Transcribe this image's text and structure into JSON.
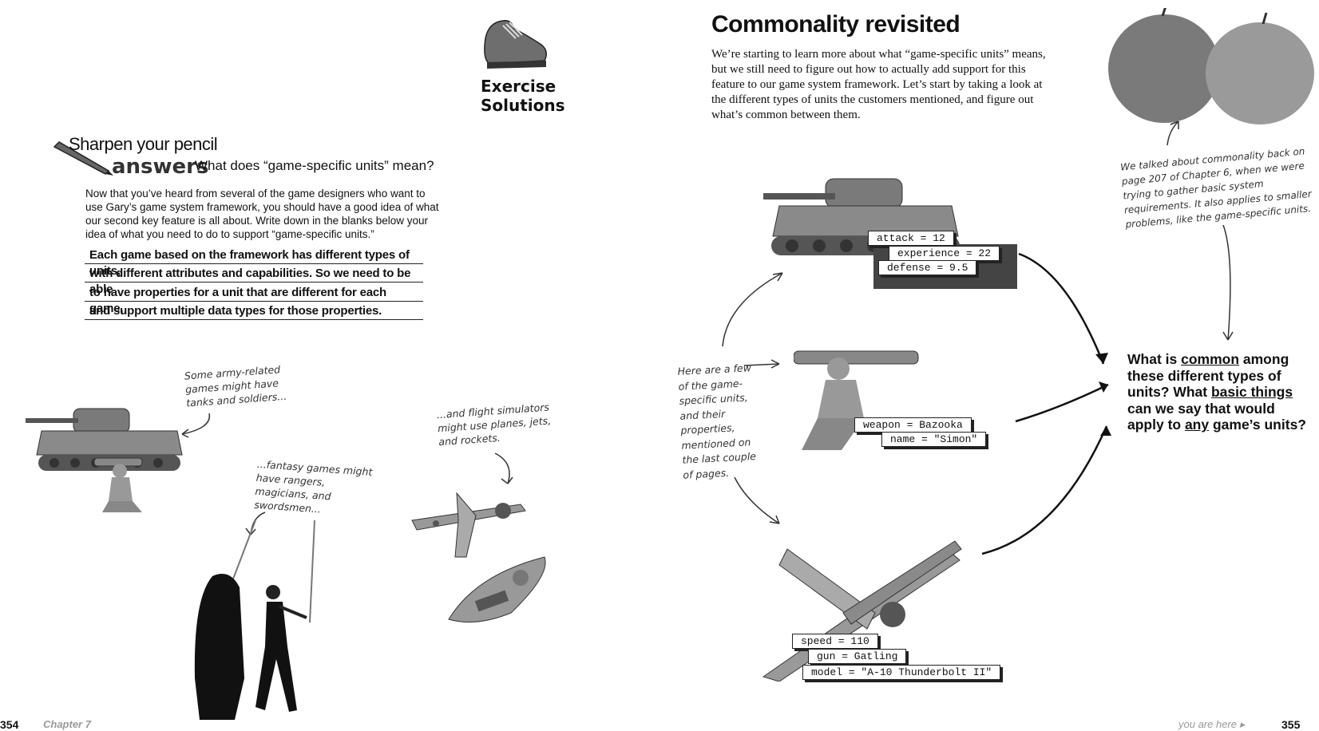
{
  "left_page": {
    "exercise_label_1": "Exercise",
    "exercise_label_2": "Solutions",
    "sharpen_title": "Sharpen your pencil",
    "answers_label": "answers",
    "question": "What does “game-specific units” mean?",
    "intro": "Now that you’ve heard from several of the game designers who want to use Gary’s game system framework, you should have a good idea of what our second key feature is all about. Write down in the blanks below your idea of what you need to do to support “game-specific units.”",
    "answer_lines": [
      "Each game based on the framework has different types of units,",
      "with different attributes and capabilities. So we need to be able",
      "to have properties for a unit that are different for each game,",
      "and support multiple data types for those properties."
    ],
    "note_army": "Some army-related games might have tanks and soldiers...",
    "note_fantasy": "...fantasy games might have rangers, magicians, and swordsmen...",
    "note_flight": "...and flight simulators might use planes, jets, and rockets.",
    "page_number": "354",
    "chapter": "Chapter 7"
  },
  "right_page": {
    "title": "Commonality revisited",
    "intro": "We’re starting to learn more about what “game-specific units” means, but we still need to figure out how to actually add support for this feature to our game system framework. Let’s start by taking a look at the different types of units the customers mentioned, and figure out what’s common between them.",
    "apple_note": "We talked about commonality back on page 207 of Chapter 6, when we were trying to gather basic system requirements. It also applies to smaller problems, like the game-specific units.",
    "units_note": "Here are a few of the game-specific units, and their properties, mentioned on the last couple of pages.",
    "tank_props": [
      "attack = 12",
      "experience = 22",
      "defense = 9.5"
    ],
    "soldier_props": [
      "weapon = Bazooka",
      "name = \"Simon\""
    ],
    "plane_props": [
      "speed = 110",
      "gun = Gatling",
      "model = \"A-10 Thunderbolt II\""
    ],
    "question_parts": {
      "p1": "What is ",
      "u1": "common",
      "p2": " among these different types of units? What ",
      "u2": "basic things",
      "p3": " can we say that would apply to ",
      "u3": "any",
      "p4": " game’s units?"
    },
    "footer_label": "you are here ▸",
    "page_number": "355"
  },
  "colors": {
    "text": "#111111",
    "handwriting": "#333333",
    "image_gray": "#8a8a8a"
  },
  "icons": [
    "shoe-icon",
    "pencil-icon",
    "tank-image",
    "soldier-image",
    "plane-image",
    "rocket-image",
    "swordsman-image",
    "apples-image"
  ]
}
